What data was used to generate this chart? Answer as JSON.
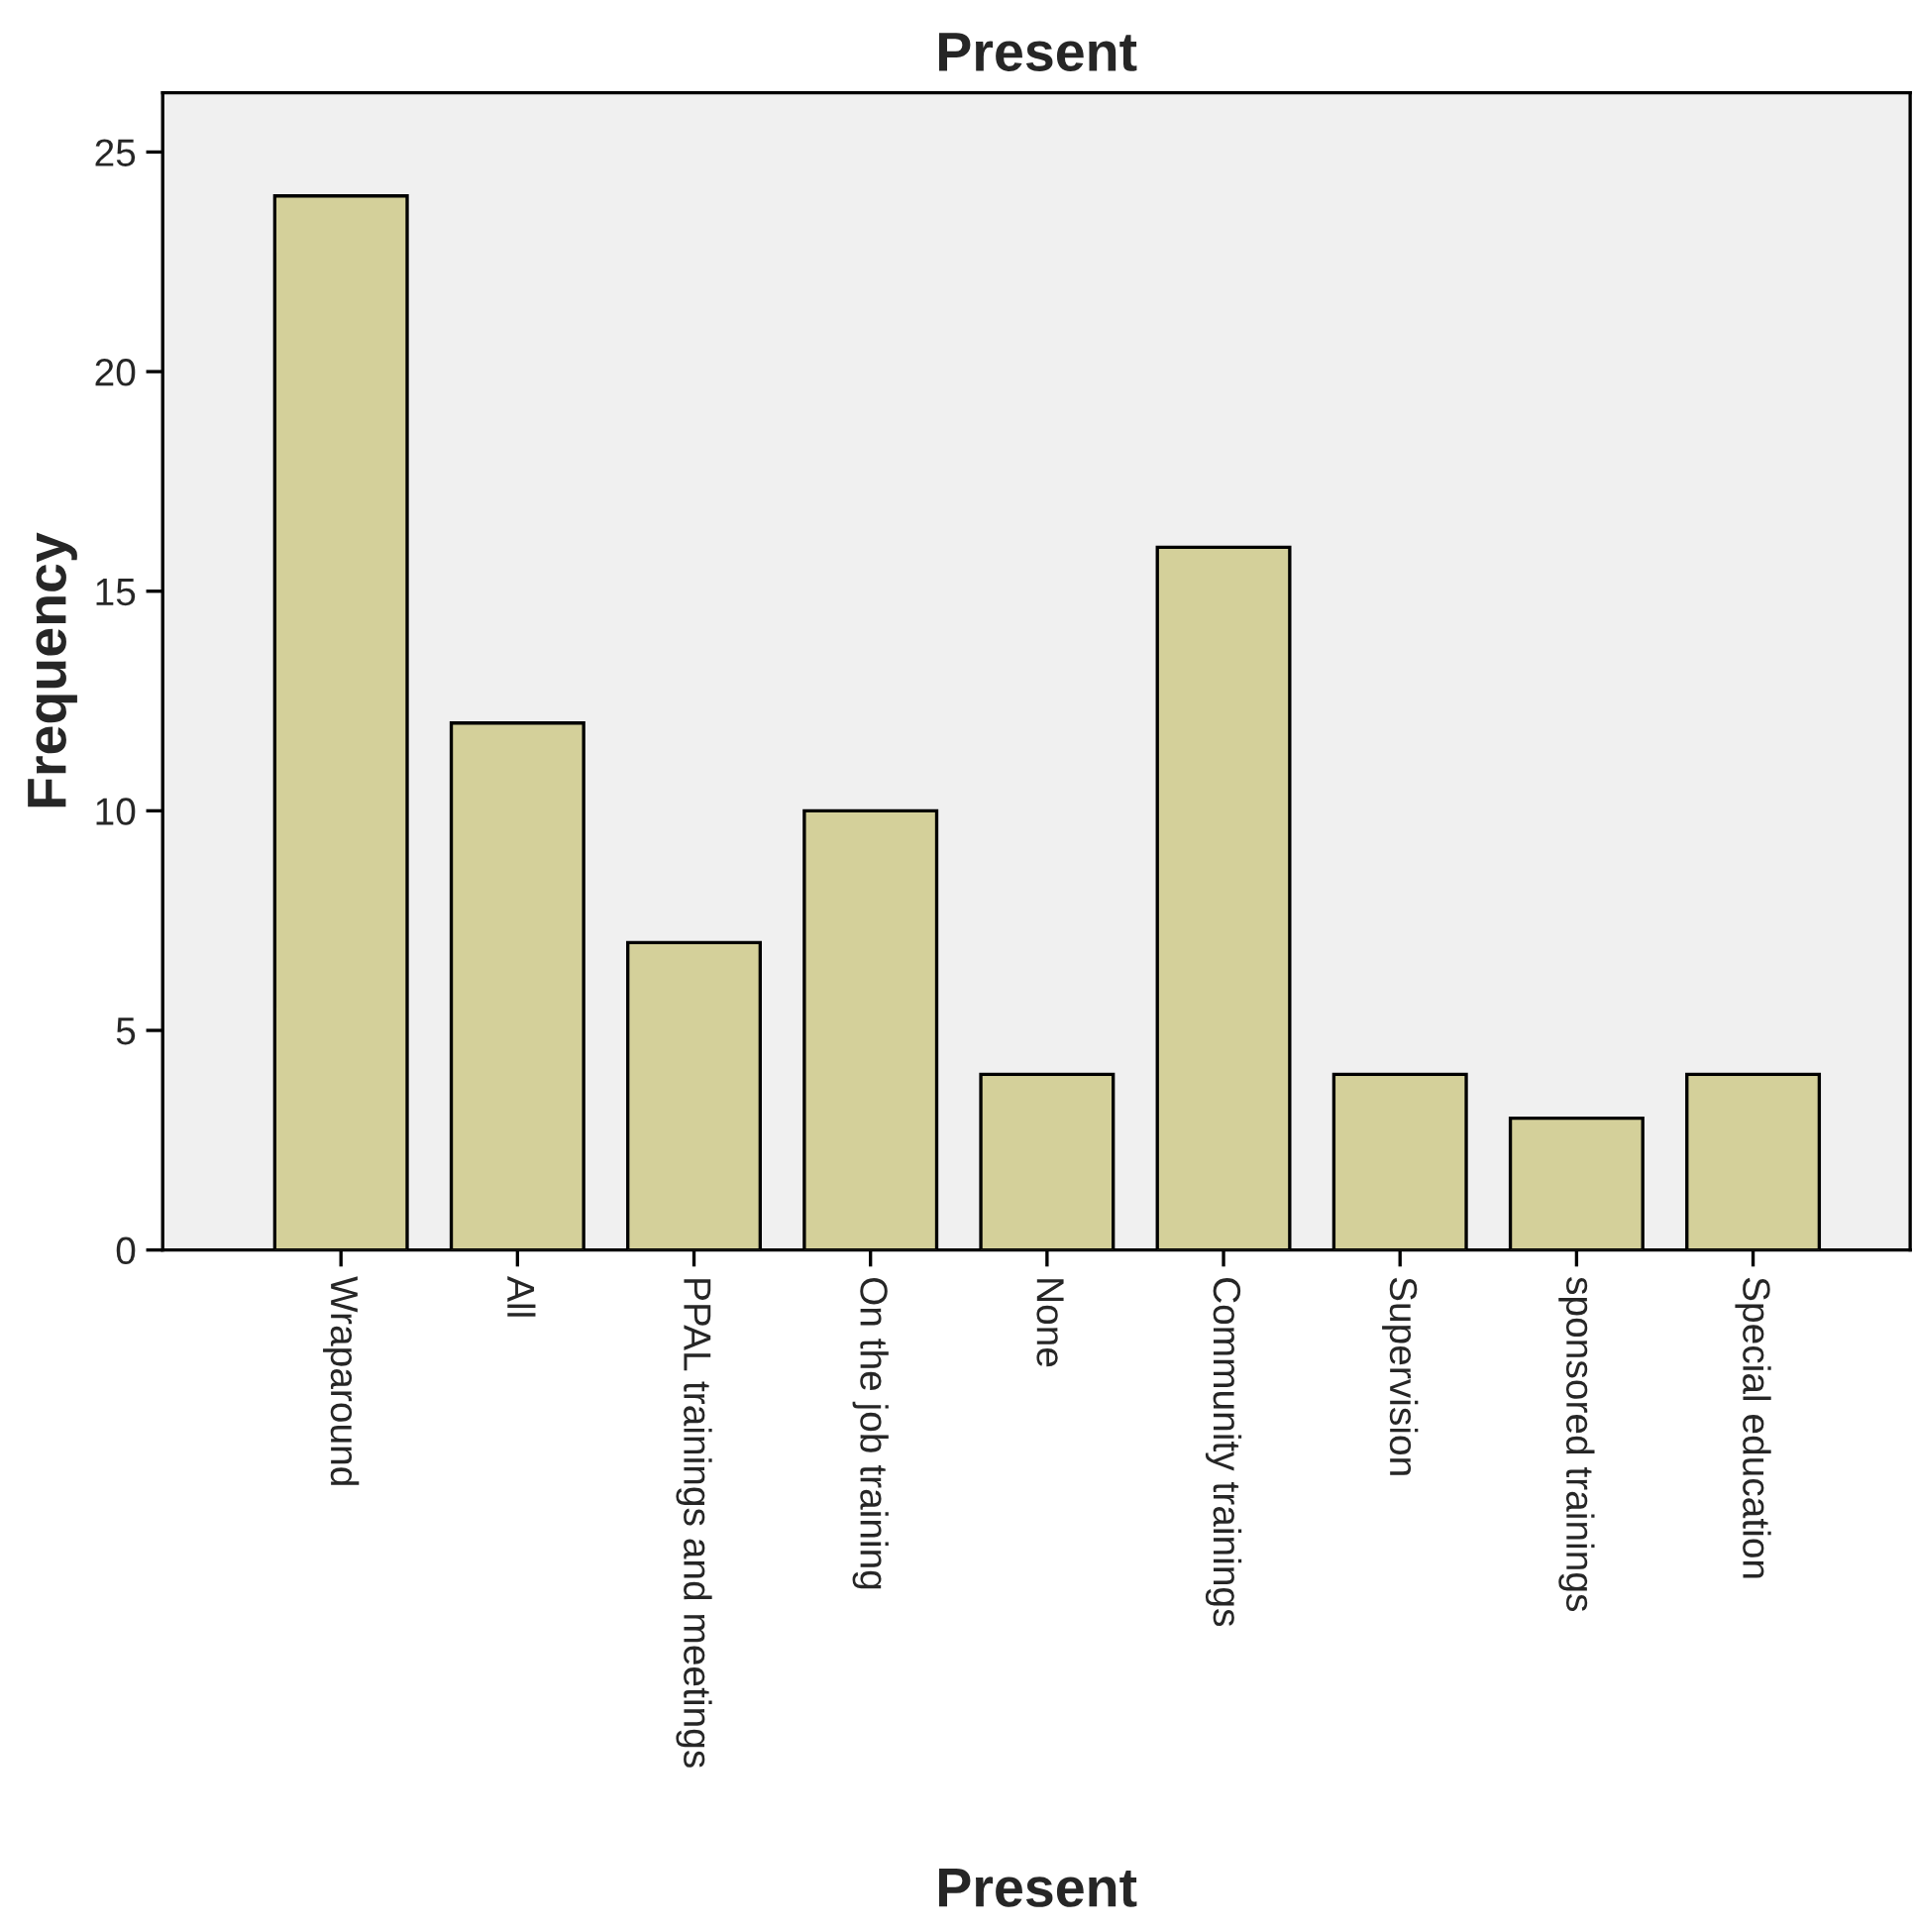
{
  "chart_data": {
    "type": "bar",
    "title": "Present",
    "xlabel": "Present",
    "ylabel": "Frequency",
    "categories": [
      "Wraparound",
      "All",
      "PPAL trainings and meetings",
      "On the job training",
      "None",
      "Community trainings",
      "Supervision",
      "sponsored trainings",
      "Special education"
    ],
    "values": [
      24,
      12,
      7,
      10,
      4,
      16,
      4,
      3,
      4
    ],
    "color": "#d4d09a",
    "ylim": [
      0,
      26.35
    ],
    "yticks": [
      0,
      5,
      10,
      15,
      20,
      25
    ],
    "grid": false,
    "legend": false
  }
}
